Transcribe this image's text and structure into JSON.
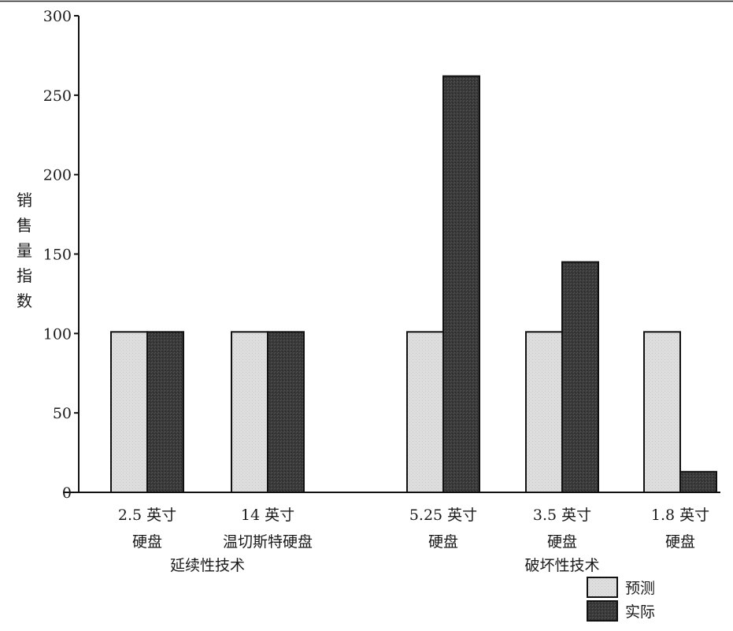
{
  "chart_data": {
    "type": "bar",
    "ylabel": "销售量指数",
    "ylim": [
      0,
      300
    ],
    "yticks": [
      0,
      50,
      100,
      150,
      200,
      250,
      300
    ],
    "categories": [
      {
        "lines": [
          "2.5 英寸",
          "硬盘"
        ]
      },
      {
        "lines": [
          "14 英寸",
          "温切斯特硬盘"
        ]
      },
      {
        "lines": [
          "5.25 英寸",
          "硬盘"
        ]
      },
      {
        "lines": [
          "3.5 英寸",
          "硬盘"
        ]
      },
      {
        "lines": [
          "1.8 英寸",
          "硬盘"
        ]
      }
    ],
    "series": [
      {
        "name": "预测",
        "color": "#dedede",
        "values": [
          101,
          101,
          101,
          101,
          101
        ]
      },
      {
        "name": "实际",
        "color": "#3a3a3a",
        "values": [
          101,
          101,
          262,
          145,
          13
        ]
      }
    ],
    "groups": [
      {
        "label": "延续性技术",
        "categories": [
          0,
          1
        ]
      },
      {
        "label": "破坏性技术",
        "categories": [
          2,
          3,
          4
        ]
      }
    ],
    "legend": {
      "position": "bottom-right"
    },
    "grid": false
  }
}
